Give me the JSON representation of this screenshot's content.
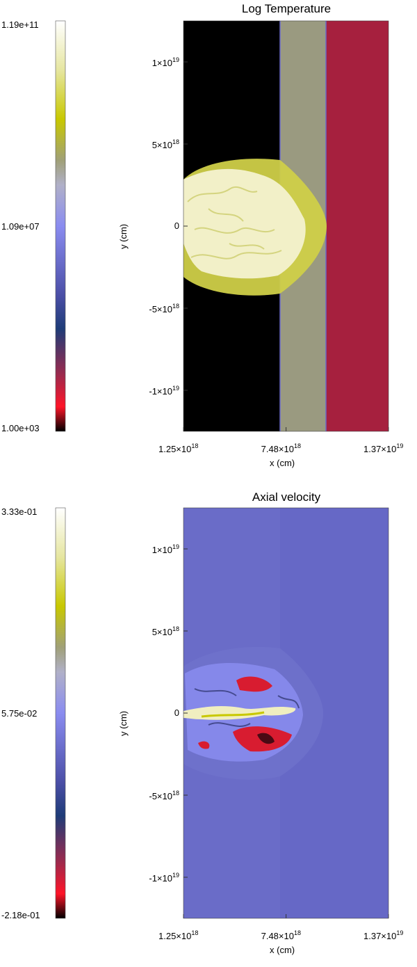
{
  "chart_data": [
    {
      "type": "heatmap",
      "title": "Log Temperature",
      "xlabel": "x (cm)",
      "ylabel": "y (cm)",
      "xlim": [
        1.25e+18,
        1.37e+19
      ],
      "ylim": [
        -1.25e+19,
        1.25e+19
      ],
      "x_ticks": [
        {
          "value": 1.25e+18,
          "mant": "1.25×10",
          "exp": "18"
        },
        {
          "value": 7.48e+18,
          "mant": "7.48×10",
          "exp": "18"
        },
        {
          "value": 1.37e+19,
          "mant": "1.37×10",
          "exp": "19"
        }
      ],
      "y_ticks": [
        {
          "value": 1e+19,
          "mant": "1×10",
          "exp": "19"
        },
        {
          "value": 5e+18,
          "mant": "5×10",
          "exp": "18"
        },
        {
          "value": 0,
          "mant": "0",
          "exp": ""
        },
        {
          "value": -5e+18,
          "mant": "-5×10",
          "exp": "18"
        },
        {
          "value": -1e+19,
          "mant": "-1×10",
          "exp": "19"
        }
      ],
      "colorbar": {
        "max": "1.19e+11",
        "mid": "1.09e+07",
        "min": "1.00e+03",
        "scale": "log"
      },
      "regions": [
        {
          "name": "ambient medium",
          "color": "#000000"
        },
        {
          "name": "hot bubble",
          "color": "#f2f0c8"
        },
        {
          "name": "shocked shell",
          "color": "#cfcf48"
        },
        {
          "name": "middle band",
          "color": "#9a9a80"
        },
        {
          "name": "right band",
          "color": "#a6203e"
        }
      ]
    },
    {
      "type": "heatmap",
      "title": "Axial velocity",
      "xlabel": "x (cm)",
      "ylabel": "y (cm)",
      "xlim": [
        1.25e+18,
        1.37e+19
      ],
      "ylim": [
        -1.25e+19,
        1.25e+19
      ],
      "x_ticks": [
        {
          "value": 1.25e+18,
          "mant": "1.25×10",
          "exp": "18"
        },
        {
          "value": 7.48e+18,
          "mant": "7.48×10",
          "exp": "18"
        },
        {
          "value": 1.37e+19,
          "mant": "1.37×10",
          "exp": "19"
        }
      ],
      "y_ticks": [
        {
          "value": 1e+19,
          "mant": "1×10",
          "exp": "19"
        },
        {
          "value": 5e+18,
          "mant": "5×10",
          "exp": "18"
        },
        {
          "value": 0,
          "mant": "0",
          "exp": ""
        },
        {
          "value": -5e+18,
          "mant": "-5×10",
          "exp": "18"
        },
        {
          "value": -1e+19,
          "mant": "-1×10",
          "exp": "19"
        }
      ],
      "colorbar": {
        "max": "3.33e-01",
        "mid": "5.75e-02",
        "min": "-2.18e-01",
        "scale": "linear"
      },
      "regions": [
        {
          "name": "background flow",
          "color": "#6a6cc8"
        },
        {
          "name": "jet",
          "color": "#f0eec0"
        },
        {
          "name": "backflow",
          "color": "#d81c30"
        }
      ]
    }
  ],
  "colormap": [
    "#000000",
    "#ff1428",
    "#9a2a4e",
    "#1e3c78",
    "#4a4ea6",
    "#8a8cf0",
    "#b0b0c8",
    "#a0a078",
    "#c8c800",
    "#e6e6a0",
    "#ffffff"
  ]
}
